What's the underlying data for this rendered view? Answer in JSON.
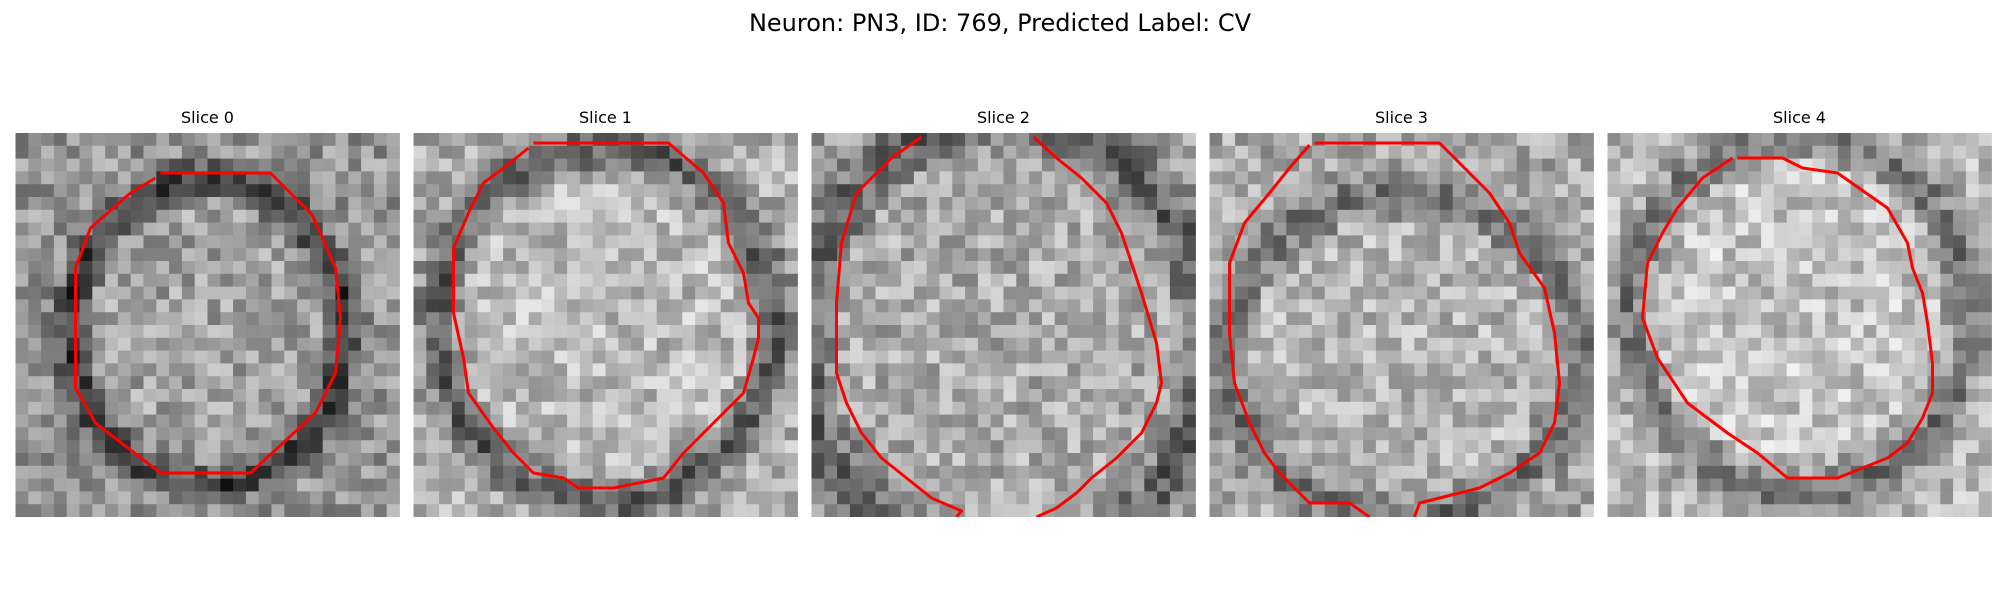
{
  "figure": {
    "title": "Neuron: PN3, ID: 769, Predicted Label: CV"
  },
  "contour_color": "#ff0000",
  "panels": [
    {
      "title": "Slice 0"
    },
    {
      "title": "Slice 1"
    },
    {
      "title": "Slice 2"
    },
    {
      "title": "Slice 3"
    },
    {
      "title": "Slice 4"
    }
  ]
}
